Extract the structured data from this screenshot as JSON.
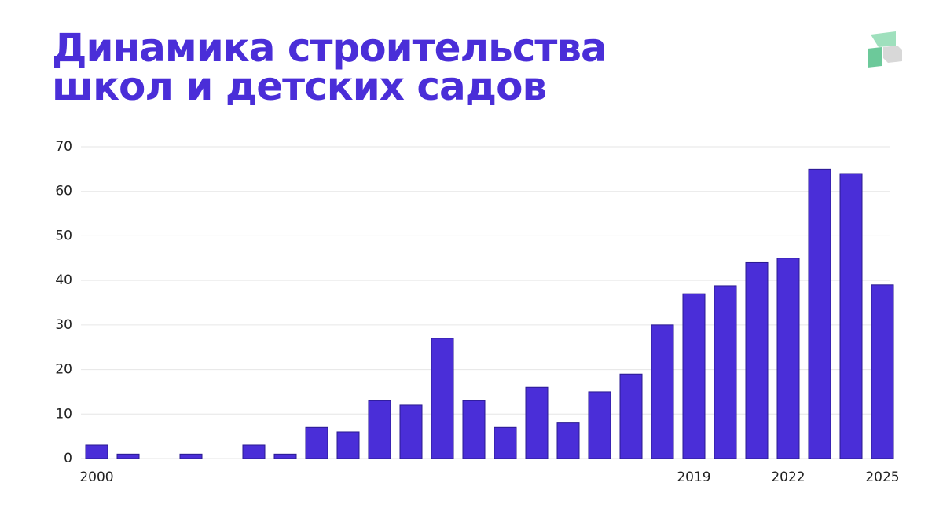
{
  "chart_data": {
    "type": "bar",
    "title": [
      "Динамика строительства",
      "школ и детских садов"
    ],
    "categories": [
      "2000",
      null,
      null,
      null,
      null,
      null,
      null,
      null,
      null,
      null,
      null,
      null,
      null,
      null,
      null,
      null,
      null,
      null,
      null,
      "2019",
      null,
      null,
      "2022",
      null,
      null,
      "2025"
    ],
    "values": [
      3,
      1,
      0,
      1,
      0,
      3,
      1,
      7,
      6,
      13,
      12,
      27,
      13,
      7,
      16,
      8,
      15,
      19,
      30,
      37,
      38.8,
      44,
      45,
      65,
      64,
      39
    ],
    "color": "#4a2ed8",
    "ylim": [
      0,
      70
    ],
    "yticks": [
      0,
      10,
      20,
      30,
      40,
      50,
      60,
      70
    ],
    "grid": true
  }
}
